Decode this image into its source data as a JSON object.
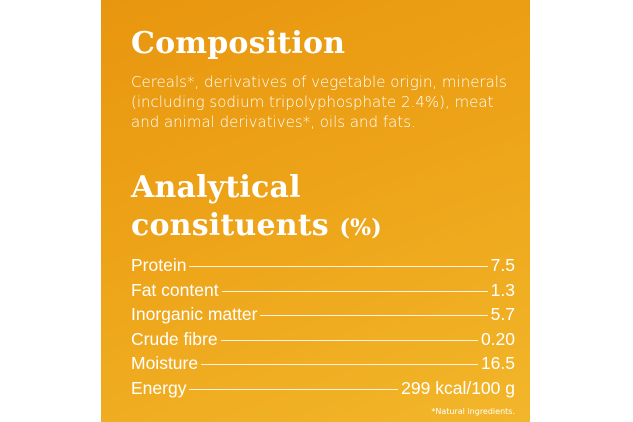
{
  "composition": {
    "title": "Composition",
    "text": "Cereals*, derivatives of vegetable origin, minerals (including sodium tripolyphosphate 2.4%), meat and animal derivatives*, oils and fats."
  },
  "analytical": {
    "title_line1": "Analytical",
    "title_line2": "consituents",
    "title_unit": "(%)",
    "rows": [
      {
        "label": "Protein",
        "value": "7.5"
      },
      {
        "label": "Fat content",
        "value": "1.3"
      },
      {
        "label": "Inorganic matter",
        "value": "5.7"
      },
      {
        "label": "Crude fibre",
        "value": "0.20"
      },
      {
        "label": "Moisture",
        "value": "16.5"
      },
      {
        "label": "Energy",
        "value": "299 kcal/100 g"
      }
    ]
  },
  "footnote": "*Natural ingredients.",
  "colors": {
    "panel_top": "#e8960f",
    "panel_bottom": "#f2b62a",
    "text": "#ffffff"
  }
}
